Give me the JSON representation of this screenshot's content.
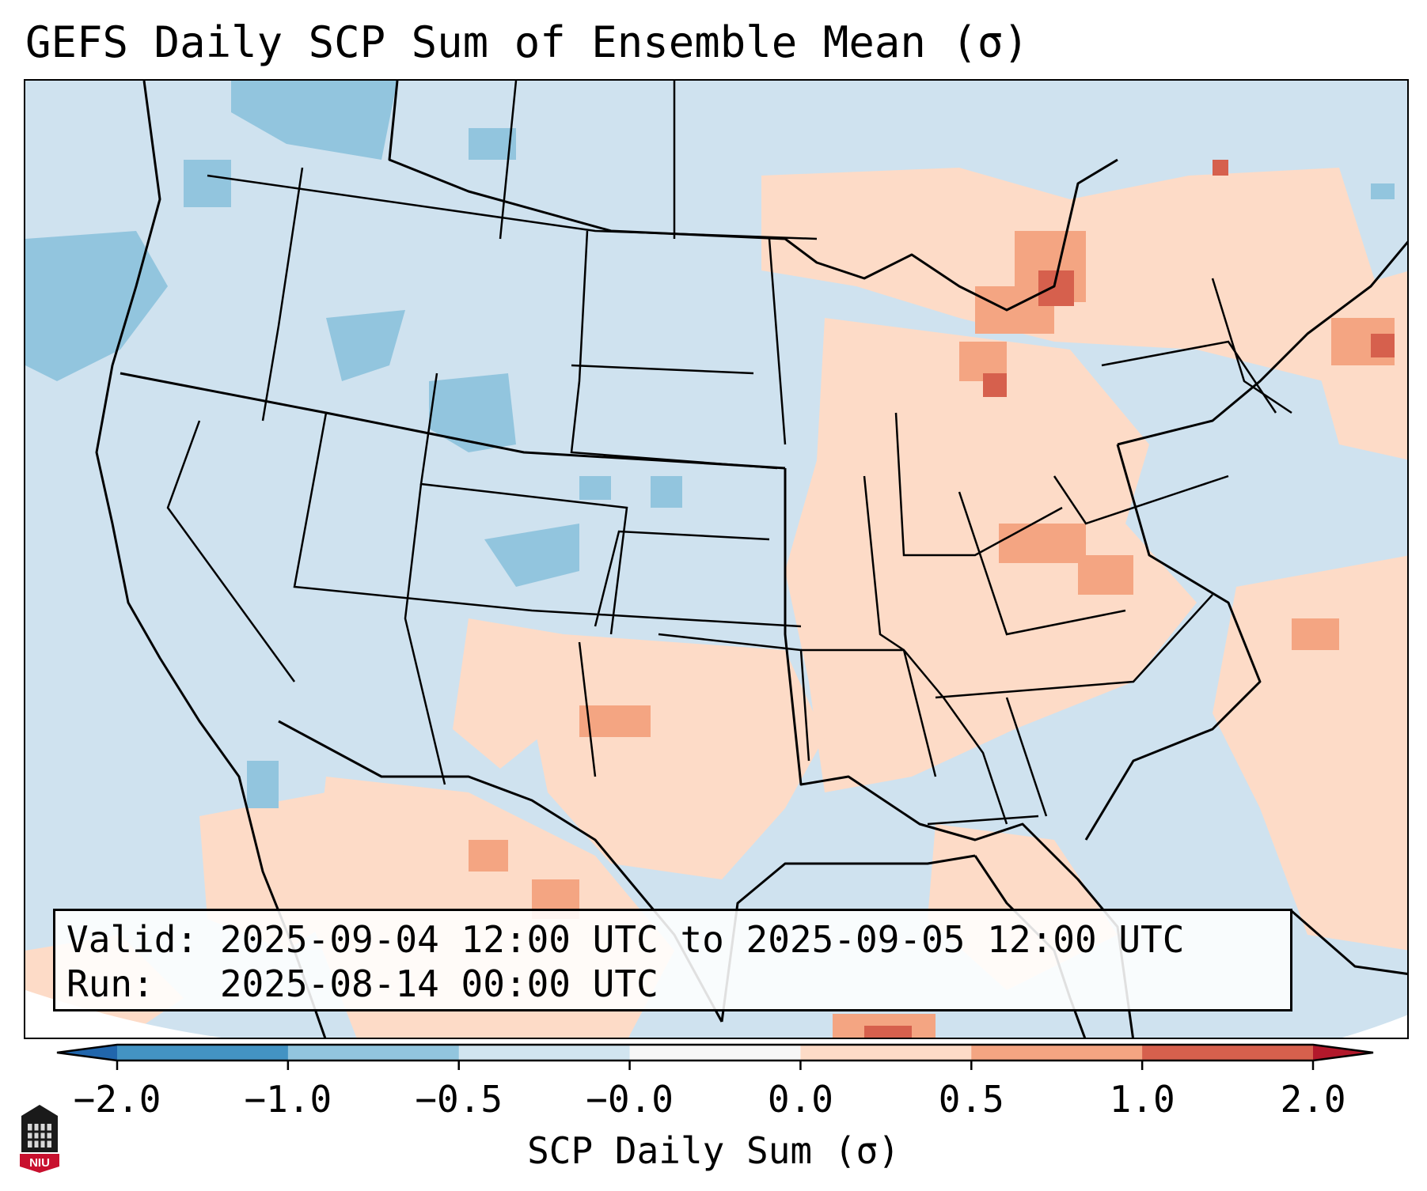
{
  "title": "GEFS Daily SCP Sum of Ensemble Mean (σ)",
  "map": {
    "region": "Continental United States",
    "ocean_fill_color": "#cfe2ef",
    "border_color": "#000000"
  },
  "info_box": {
    "valid_label": "Valid:",
    "valid_value": "2025-09-04 12:00 UTC to 2025-09-05 12:00 UTC",
    "run_label": "Run:",
    "run_value": "2025-08-14 00:00 UTC"
  },
  "colorbar": {
    "label": "SCP Daily Sum (σ)",
    "ticks": [
      "−2.0",
      "−1.0",
      "−0.5",
      "−0.0",
      "0.0",
      "0.5",
      "1.0",
      "2.0"
    ],
    "bin_colors": [
      "#2166ac",
      "#4393c3",
      "#92c5de",
      "#d1e5f0",
      "#f7f7f7",
      "#fddbc7",
      "#f4a582",
      "#d6604d",
      "#b2182b"
    ],
    "extend": "both"
  },
  "logo": {
    "text": "NIU",
    "icon": "niu-tower-icon"
  }
}
